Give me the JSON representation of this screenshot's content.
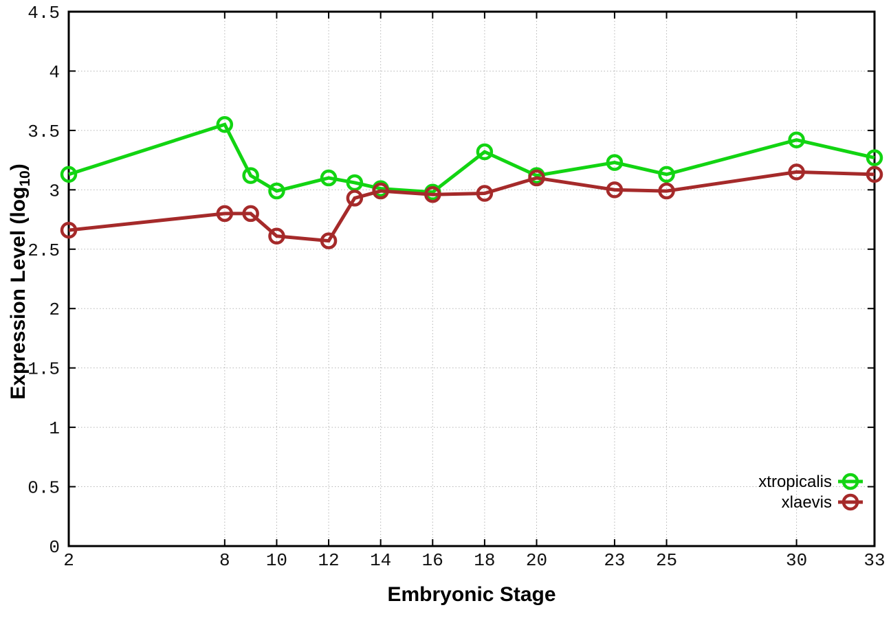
{
  "chart_data": {
    "type": "line",
    "title": "",
    "xlabel": "Embryonic Stage",
    "ylabel": "Expression Level (log10)",
    "ylabel_parts": {
      "main": "Expression Level (log",
      "sub": "10",
      "end": ")"
    },
    "x": [
      2,
      8,
      9,
      10,
      12,
      13,
      14,
      16,
      18,
      20,
      23,
      25,
      30,
      33
    ],
    "series": [
      {
        "name": "xtropicalis",
        "color": "#12d412",
        "values": [
          3.13,
          3.55,
          3.12,
          2.99,
          3.1,
          3.06,
          3.01,
          2.98,
          3.32,
          3.12,
          3.23,
          3.13,
          3.42,
          3.27
        ]
      },
      {
        "name": "xlaevis",
        "color": "#a52a2a",
        "values": [
          2.66,
          2.8,
          2.8,
          2.61,
          2.57,
          2.93,
          2.99,
          2.96,
          2.97,
          3.1,
          3.0,
          2.99,
          3.15,
          3.13
        ]
      }
    ],
    "xlim": [
      2,
      33
    ],
    "ylim": [
      0,
      4.5
    ],
    "xticks": [
      2,
      8,
      10,
      12,
      14,
      16,
      18,
      20,
      23,
      25,
      30,
      33
    ],
    "xtick_labels": [
      "2",
      "8",
      "10",
      "12",
      "14",
      "16",
      "18",
      "20",
      "23",
      "25",
      "30",
      "33"
    ],
    "yticks": [
      0,
      0.5,
      1,
      1.5,
      2,
      2.5,
      3,
      3.5,
      4,
      4.5
    ],
    "ytick_labels": [
      "0",
      "0.5",
      "1",
      "1.5",
      "2",
      "2.5",
      "3",
      "3.5",
      "4",
      "4.5"
    ],
    "grid": true,
    "legend_position": "bottom-right-inside",
    "marker": "open-circle"
  },
  "colors": {
    "background": "#ffffff",
    "axis": "#000000",
    "grid": "#b5b5b5",
    "series_green": "#12d412",
    "series_red": "#a52a2a"
  }
}
